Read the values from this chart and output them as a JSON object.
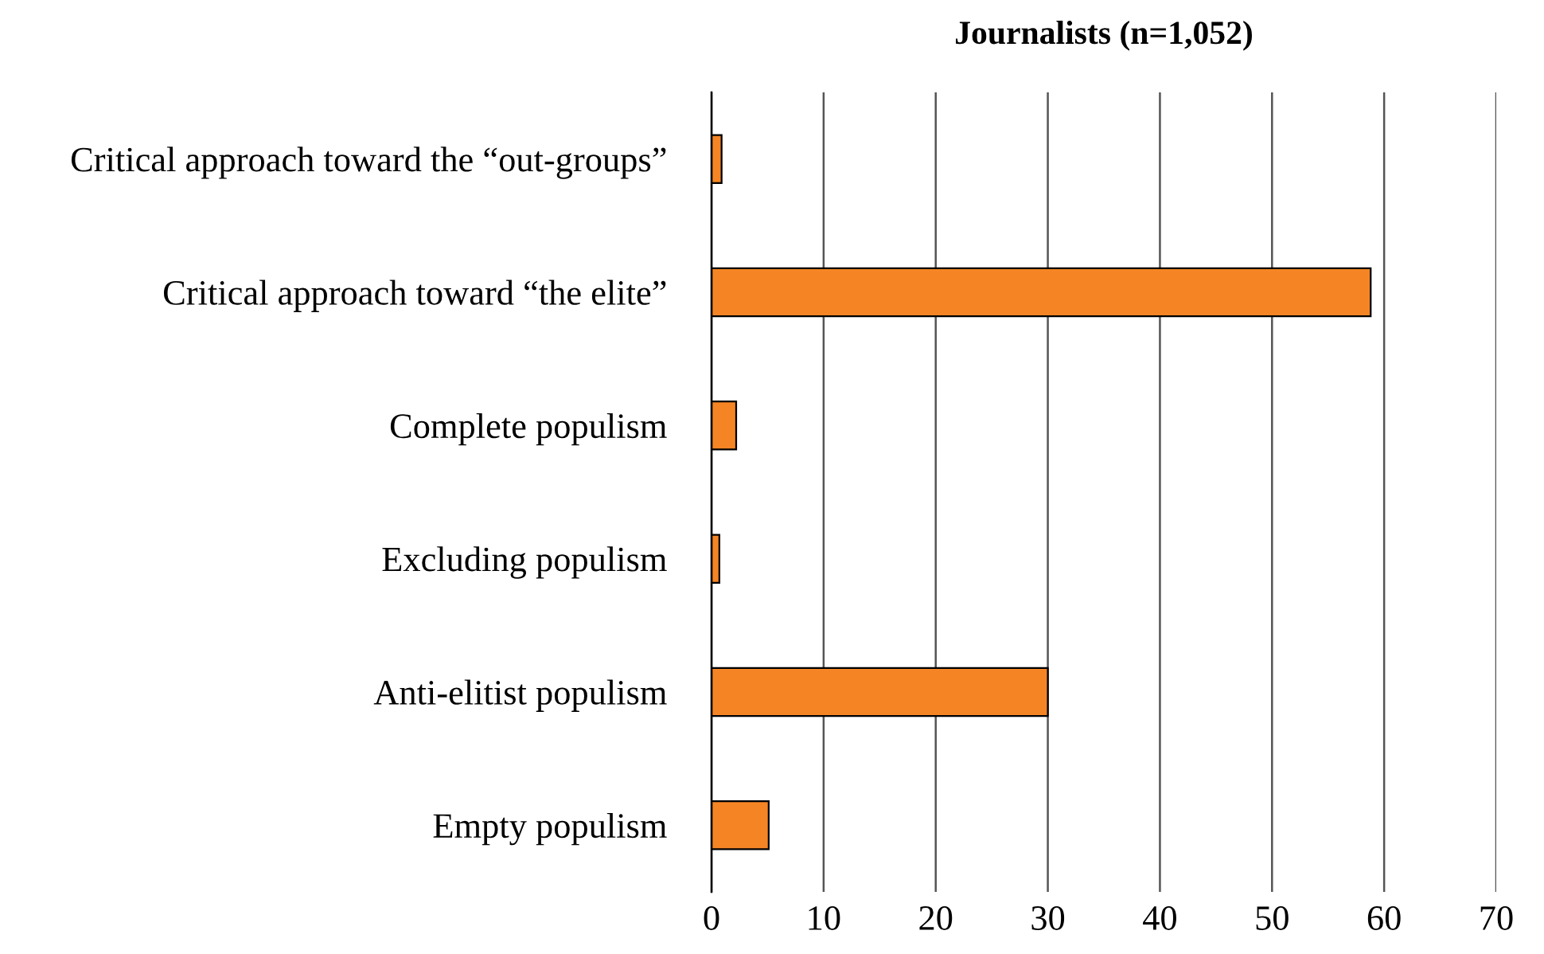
{
  "chart_data": {
    "type": "bar",
    "orientation": "horizontal",
    "title": "Journalists (n=1,052)",
    "categories": [
      "Critical approach toward the “out-groups”",
      "Critical approach toward “the elite”",
      "Complete populism",
      "Excluding populism",
      "Anti-elitist populism",
      "Empty populism"
    ],
    "values": [
      0.9,
      58.8,
      2.2,
      0.7,
      30.0,
      5.1
    ],
    "color": "#f58524",
    "xlim": [
      0,
      70
    ],
    "xticks": [
      0,
      10,
      20,
      30,
      40,
      50,
      60,
      70
    ],
    "grid": "x",
    "legend": false
  }
}
